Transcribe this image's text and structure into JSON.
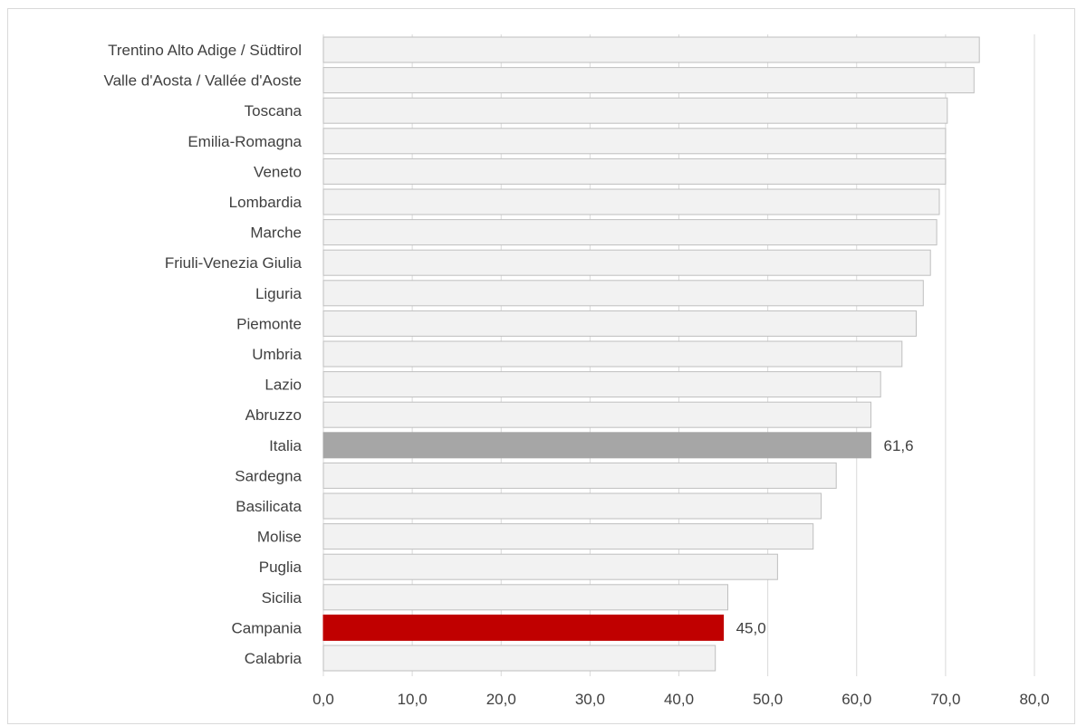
{
  "chart_data": {
    "type": "bar",
    "orientation": "horizontal",
    "categories": [
      "Trentino Alto Adige / Südtirol",
      "Valle d'Aosta / Vallée d'Aoste",
      "Toscana",
      "Emilia-Romagna",
      "Veneto",
      "Lombardia",
      "Marche",
      "Friuli-Venezia Giulia",
      "Liguria",
      "Piemonte",
      "Umbria",
      "Lazio",
      "Abruzzo",
      "Italia",
      "Sardegna",
      "Basilicata",
      "Molise",
      "Puglia",
      "Sicilia",
      "Campania",
      "Calabria"
    ],
    "values": [
      73.8,
      73.2,
      70.2,
      70.0,
      70.0,
      69.3,
      69.0,
      68.3,
      67.5,
      66.7,
      65.1,
      62.7,
      61.6,
      61.6,
      57.7,
      56.0,
      55.1,
      51.1,
      45.5,
      45.0,
      44.1
    ],
    "data_labels": {
      "Italia": "61,6",
      "Campania": "45,0"
    },
    "colors": {
      "default_fill": "#f2f2f2",
      "default_stroke": "#bfbfbf",
      "highlight": {
        "Italia": "#a6a6a6",
        "Campania": "#c00000"
      },
      "grid": "#d9d9d9"
    },
    "xlim": [
      0,
      80
    ],
    "xticks": [
      0,
      10,
      20,
      30,
      40,
      50,
      60,
      70,
      80
    ],
    "xtick_labels": [
      "0,0",
      "10,0",
      "20,0",
      "30,0",
      "40,0",
      "50,0",
      "60,0",
      "70,0",
      "80,0"
    ],
    "grid": "vertical",
    "legend": "none"
  }
}
